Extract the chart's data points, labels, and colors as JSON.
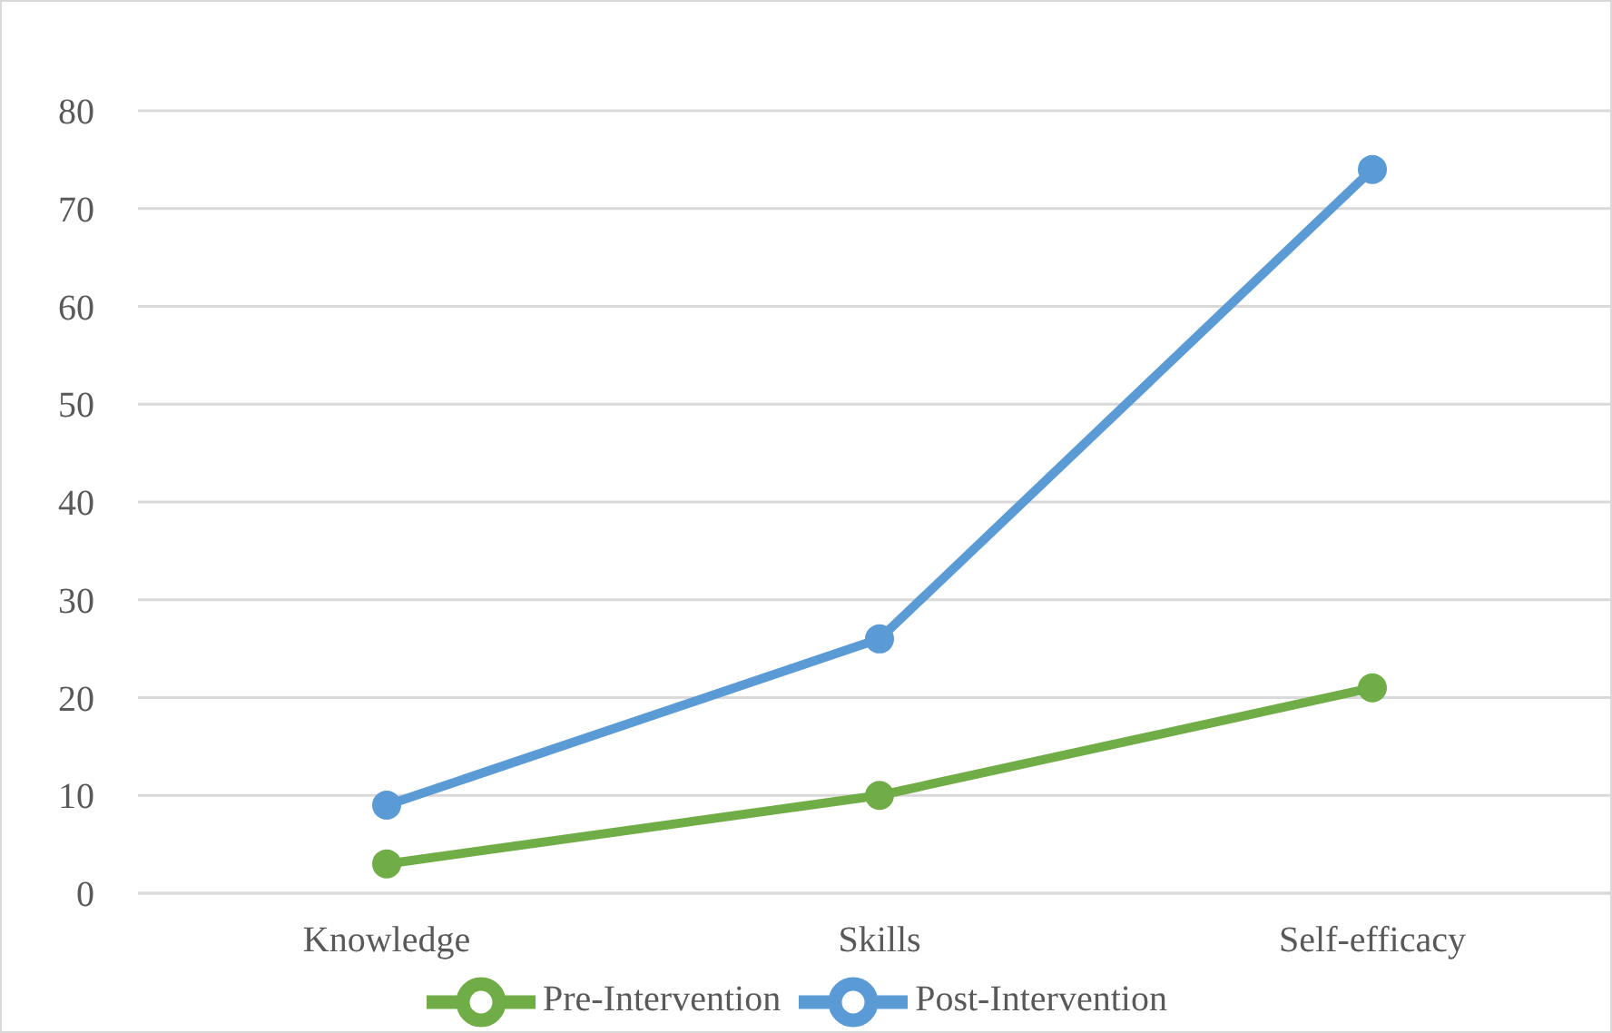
{
  "chart_data": {
    "type": "line",
    "categories": [
      "Knowledge",
      "Skills",
      "Self-efficacy"
    ],
    "series": [
      {
        "name": "Pre-Intervention",
        "color": "#70ad47",
        "values": [
          3,
          10,
          21
        ]
      },
      {
        "name": "Post-Intervention",
        "color": "#5b9bd5",
        "values": [
          9,
          26,
          74
        ]
      }
    ],
    "ylim": [
      0,
      80
    ],
    "yticks": [
      0,
      10,
      20,
      30,
      40,
      50,
      60,
      70,
      80
    ],
    "grid": "y",
    "legend": "bottom",
    "marker": "circle",
    "line_style": "solid"
  }
}
